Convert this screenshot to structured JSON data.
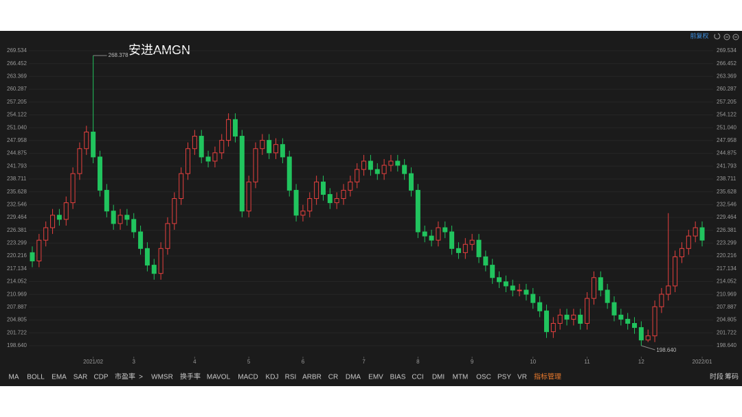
{
  "chart_data": {
    "type": "candlestick",
    "title": "安进AMGN",
    "adjust_mode": "前复权",
    "categories": [
      null,
      null,
      null,
      null,
      null,
      null,
      null,
      null,
      null,
      "2021/02",
      null,
      null,
      null,
      null,
      null,
      "3",
      null,
      null,
      null,
      null,
      null,
      null,
      null,
      null,
      "4",
      null,
      null,
      null,
      null,
      null,
      null,
      null,
      "5",
      null,
      null,
      null,
      null,
      null,
      null,
      null,
      "6",
      null,
      null,
      null,
      null,
      null,
      null,
      null,
      null,
      "7",
      null,
      null,
      null,
      null,
      null,
      null,
      null,
      "8",
      null,
      null,
      null,
      null,
      null,
      null,
      null,
      "9",
      null,
      null,
      null,
      null,
      null,
      null,
      null,
      null,
      "10",
      null,
      null,
      null,
      null,
      null,
      null,
      null,
      "11",
      null,
      null,
      null,
      null,
      null,
      null,
      null,
      "12",
      null,
      null,
      null,
      null,
      null,
      null,
      null,
      null,
      "2022/01"
    ],
    "open": [
      221,
      219,
      224,
      227,
      230,
      229,
      233,
      240,
      246,
      250,
      244,
      236,
      231,
      228,
      230,
      229,
      226,
      222,
      218,
      216,
      222,
      228,
      234,
      240,
      246,
      249,
      244,
      243,
      245,
      248,
      253,
      249,
      231,
      238,
      246,
      248,
      245,
      247,
      244,
      236,
      230,
      231,
      234,
      238,
      235,
      233,
      234,
      236,
      238,
      241,
      243,
      241,
      240,
      242,
      243,
      242,
      240,
      236,
      226,
      225,
      224,
      227,
      226,
      222,
      221,
      223,
      224,
      220,
      218,
      215,
      214,
      213,
      212,
      212,
      211,
      209,
      207,
      202,
      204,
      206,
      205,
      206,
      204,
      210,
      215,
      212,
      209,
      206,
      205,
      204,
      203,
      200,
      201,
      208,
      211,
      213,
      220,
      222,
      225,
      227
    ],
    "high": [
      222.5,
      225.5,
      228.5,
      231.5,
      231.5,
      234.5,
      241.5,
      247.5,
      251.5,
      268.378,
      245.5,
      237.5,
      232.5,
      231.5,
      231.5,
      230.5,
      227.5,
      223.5,
      219.5,
      223.5,
      229.5,
      235.5,
      241.5,
      247.5,
      250.5,
      250.5,
      245.5,
      246.5,
      249.5,
      254.5,
      254.5,
      250.5,
      239.5,
      247.5,
      249.5,
      249.5,
      248.5,
      248.5,
      245.5,
      237.5,
      232.5,
      235.5,
      239.5,
      239.5,
      236.5,
      235.5,
      237.5,
      239.5,
      242.5,
      244.5,
      244.5,
      242.5,
      243.5,
      244.5,
      244.5,
      243.5,
      241.5,
      237.5,
      227.5,
      226.5,
      228.5,
      228.5,
      227.5,
      223.5,
      224.5,
      225.5,
      225.5,
      221.5,
      219.5,
      216.5,
      215.5,
      214.5,
      213.5,
      213.5,
      212.5,
      210.5,
      208.5,
      205.5,
      207.5,
      207.5,
      207.5,
      207.5,
      211.5,
      216.5,
      216.5,
      213.5,
      210.5,
      207.5,
      206.5,
      205.5,
      204.5,
      202.5,
      209.5,
      212.5,
      230.5,
      221.5,
      223.5,
      226.5,
      228.5,
      228.5
    ],
    "low": [
      217.5,
      217.5,
      222.5,
      225.5,
      227.5,
      227.5,
      231.5,
      238.5,
      244.5,
      242.5,
      234.5,
      229.5,
      226.5,
      226.5,
      227.5,
      224.5,
      220.5,
      216.5,
      214.5,
      214.5,
      220.5,
      226.5,
      232.5,
      238.5,
      244.5,
      242.5,
      241.5,
      241.5,
      243.5,
      246.5,
      247.5,
      229.5,
      229.5,
      236.5,
      244.5,
      243.5,
      243.5,
      242.5,
      234.5,
      228.5,
      228.5,
      229.5,
      232.5,
      233.5,
      231.5,
      231.5,
      232.5,
      234.5,
      236.5,
      239.5,
      239.5,
      238.5,
      238.5,
      240.5,
      240.5,
      238.5,
      234.5,
      224.5,
      223.5,
      222.5,
      222.5,
      224.5,
      220.5,
      219.5,
      219.5,
      221.5,
      218.5,
      216.5,
      213.5,
      212.5,
      211.5,
      210.5,
      210.5,
      209.5,
      207.5,
      205.5,
      200.5,
      200.5,
      202.5,
      203.5,
      203.5,
      202.5,
      202.5,
      208.5,
      210.5,
      207.5,
      204.5,
      203.5,
      202.5,
      201.5,
      198.64,
      199.5,
      199.5,
      206.5,
      209.5,
      211.5,
      218.5,
      220.5,
      223.5,
      222.5
    ],
    "close": [
      219,
      224,
      227,
      230,
      229,
      233,
      240,
      246,
      250,
      244,
      236,
      231,
      228,
      230,
      229,
      226,
      222,
      218,
      216,
      222,
      228,
      234,
      240,
      246,
      249,
      244,
      243,
      245,
      248,
      253,
      249,
      231,
      238,
      246,
      248,
      245,
      247,
      244,
      236,
      230,
      231,
      234,
      238,
      235,
      233,
      234,
      236,
      238,
      241,
      243,
      241,
      240,
      242,
      243,
      242,
      240,
      236,
      226,
      225,
      224,
      227,
      226,
      222,
      221,
      223,
      224,
      220,
      218,
      215,
      214,
      213,
      212,
      212,
      211,
      209,
      207,
      202,
      204,
      206,
      205,
      206,
      204,
      210,
      215,
      212,
      209,
      206,
      205,
      204,
      203,
      200,
      201,
      208,
      211,
      213,
      220,
      222,
      225,
      227,
      224
    ],
    "up_color": "#e8413f",
    "down_color": "#21c45e",
    "ylim": [
      198.64,
      269.534
    ],
    "yticks": [
      269.534,
      266.452,
      263.369,
      260.287,
      257.205,
      254.122,
      {
        "value": 251.04,
        "label": "251.040"
      },
      247.958,
      244.875,
      241.793,
      238.711,
      235.628,
      232.546,
      229.464,
      226.381,
      223.299,
      220.216,
      217.134,
      214.052,
      210.969,
      207.887,
      204.805,
      201.722,
      {
        "value": 198.64,
        "label": "198.640"
      }
    ],
    "grid": true,
    "high_label": "268.378",
    "low_label": "198.640"
  },
  "indicator_tabs": [
    "MA",
    "BOLL",
    "EMA",
    "SAR",
    "CDP",
    "市盈率",
    ">",
    "WMSR",
    "换手率",
    "MAVOL",
    "MACD",
    "KDJ",
    "RSI",
    "ARBR",
    "CR",
    "DMA",
    "EMV",
    "BIAS",
    "CCI",
    "DMI",
    "MTM",
    "OSC",
    "PSY",
    "VR",
    "指标管理"
  ],
  "right_tabs": [
    "时段",
    "筹码"
  ]
}
